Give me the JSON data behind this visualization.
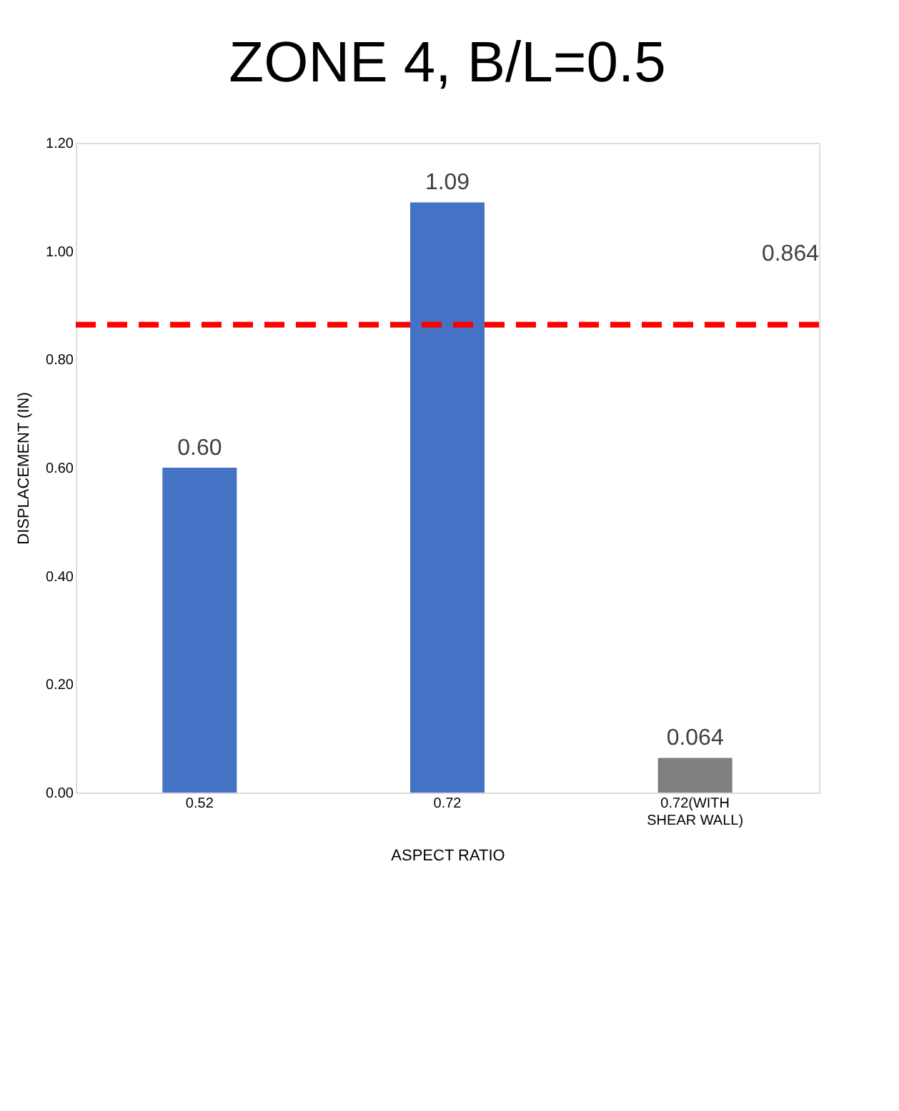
{
  "chart_data": {
    "type": "bar",
    "title": "ZONE 4, B/L=0.5",
    "xlabel": "ASPECT RATIO",
    "ylabel": "DISPLACEMENT (IN)",
    "categories": [
      "0.52",
      "0.72",
      "0.72(WITH SHEAR WALL)"
    ],
    "values": [
      0.6,
      1.09,
      0.064
    ],
    "colors": [
      "#4472c4",
      "#4472c4",
      "#7f7f7f"
    ],
    "value_labels": [
      "0.60",
      "1.09",
      "0.064"
    ],
    "ylim": [
      0,
      1.2
    ],
    "yticks": [
      {
        "value": 0,
        "label": "0.00"
      },
      {
        "value": 0.2,
        "label": "0.20"
      },
      {
        "value": 0.4,
        "label": "0.40"
      },
      {
        "value": 0.6,
        "label": "0.60"
      },
      {
        "value": 0.8,
        "label": "0.80"
      },
      {
        "value": 1.0,
        "label": "1.00"
      },
      {
        "value": 1.2,
        "label": "1.20"
      }
    ],
    "ref_lines": [
      {
        "axis": "y",
        "value": 0.864,
        "label": "0.864",
        "color": "#ff0000",
        "line_style": "dashed"
      }
    ],
    "grid": false
  }
}
